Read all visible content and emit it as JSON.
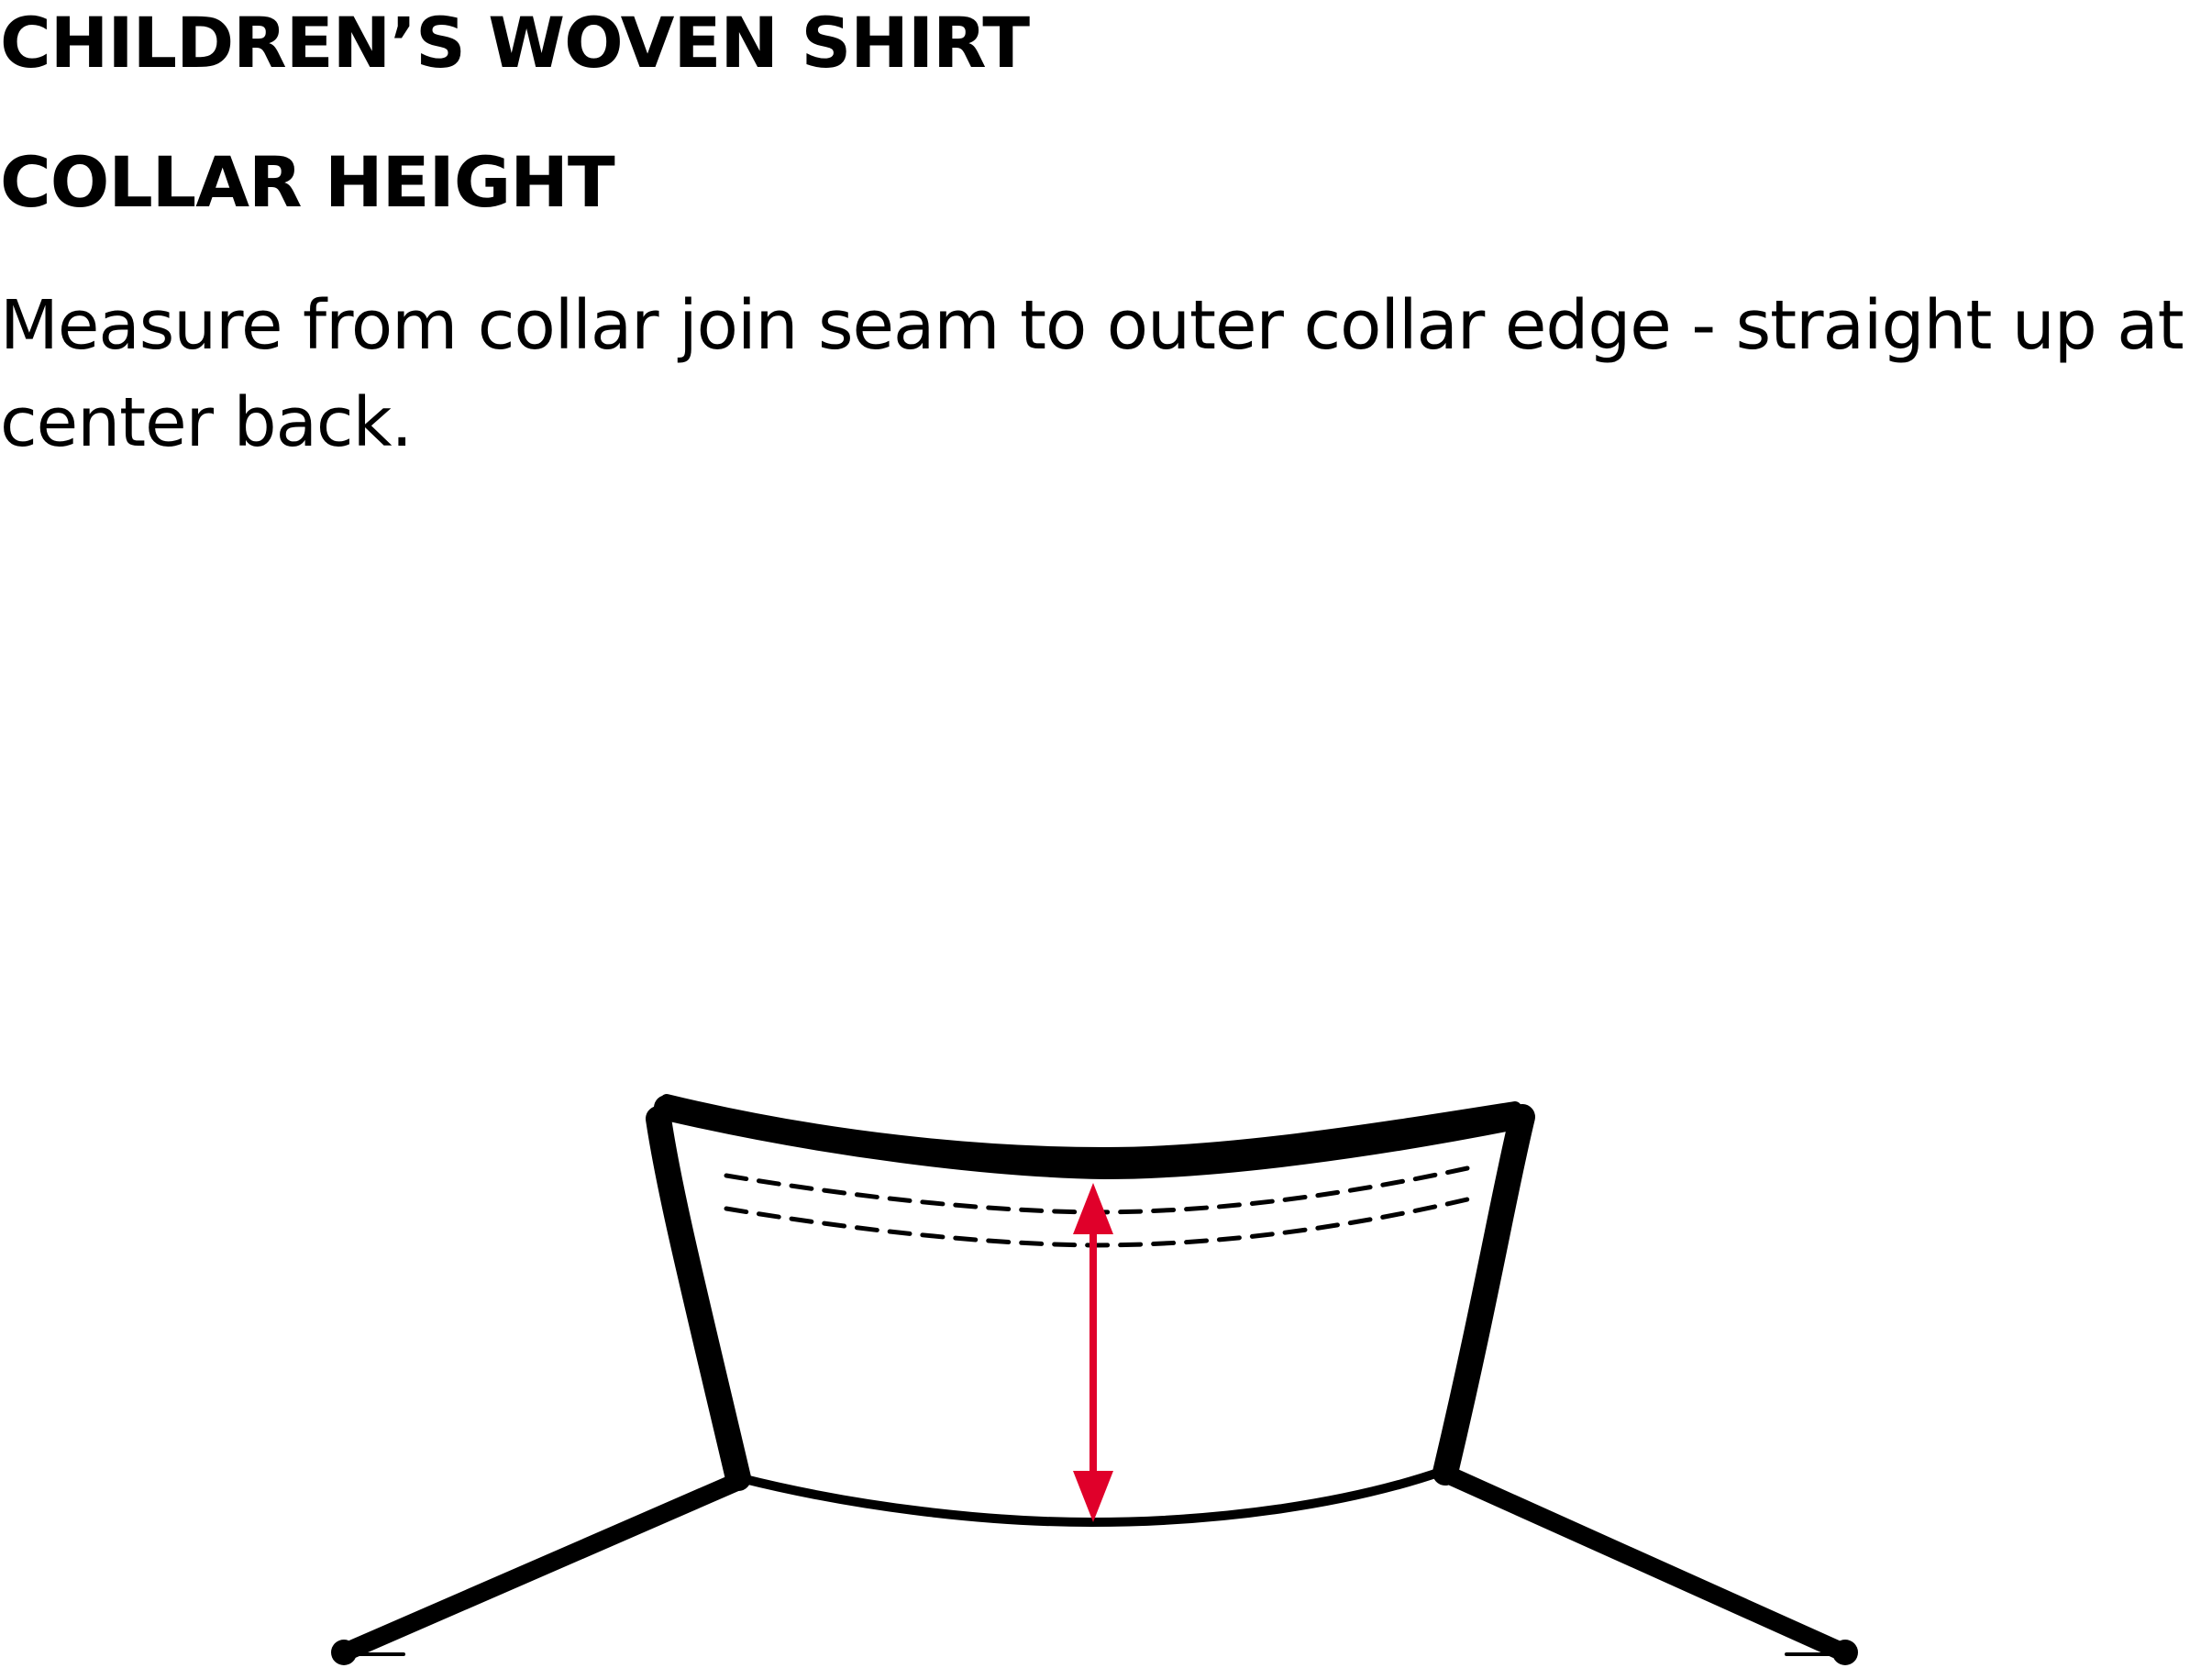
{
  "title": "CHILDREN’S WOVEN SHIRT",
  "subtitle": "COLLAR HEIGHT",
  "instructions": "Measure from collar join seam to outer collar edge - straight up at center back.",
  "colors": {
    "outline": "#000000",
    "measure_arrow": "#e0002a",
    "background": "#ffffff"
  },
  "icons": {
    "collar": "collar-outline-icon",
    "arrow": "double-headed-arrow-icon"
  }
}
